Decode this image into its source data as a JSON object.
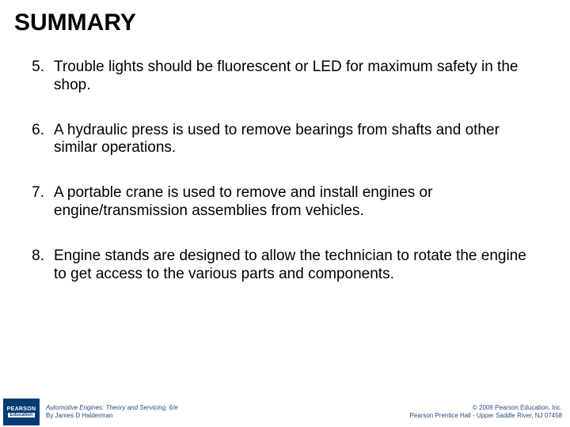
{
  "title": "SUMMARY",
  "items": [
    {
      "num": "5.",
      "text": "Trouble lights should be fluorescent or LED for maximum safety in the shop."
    },
    {
      "num": "6.",
      "text": "A hydraulic press is used to remove bearings from shafts and other similar operations."
    },
    {
      "num": "7.",
      "text": "A portable crane is used to remove and install engines or engine/transmission assemblies from vehicles."
    },
    {
      "num": "8.",
      "text": "Engine stands are designed to allow the technician to rotate the engine to get access to the various parts and components."
    }
  ],
  "logo": {
    "top": "PEARSON",
    "bottom": "Education"
  },
  "footer": {
    "left_line1": "Automotive Engines: Theory and Servicing, 6/e",
    "left_line2": "By James D Halderman",
    "right_line1": "© 2009 Pearson Education, Inc.",
    "right_line2": "Pearson Prentice Hall - Upper Saddle River, NJ 07458"
  },
  "colors": {
    "title": "#000000",
    "body_text": "#000000",
    "footer_text": "#2a4a7a",
    "logo_bg": "#003b74",
    "logo_text": "#ffffff",
    "background": "#ffffff"
  },
  "typography": {
    "title_fontsize": 30,
    "body_fontsize": 19,
    "footer_fontsize": 8
  }
}
